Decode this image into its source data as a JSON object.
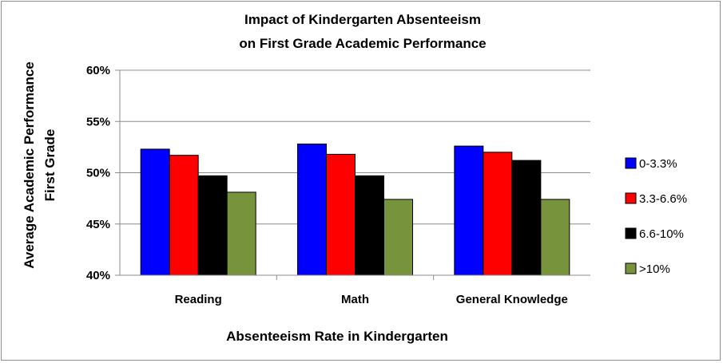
{
  "chart_data": {
    "type": "bar",
    "title_lines": [
      "Impact of Kindergarten Absenteeism",
      "on First Grade Academic Performance"
    ],
    "ylabel_lines": [
      "Average Academic Performance",
      "First Grade"
    ],
    "xlabel": "Absenteeism Rate in Kindergarten",
    "categories": [
      "Reading",
      "Math",
      "General Knowledge"
    ],
    "series": [
      {
        "name": "0-3.3%",
        "color": "#0000ff",
        "values": [
          52.3,
          52.8,
          52.6
        ]
      },
      {
        "name": "3.3-6.6%",
        "color": "#ff0000",
        "values": [
          51.7,
          51.8,
          52.0
        ]
      },
      {
        "name": "6.6-10%",
        "color": "#000000",
        "values": [
          49.7,
          49.7,
          51.2
        ]
      },
      {
        "name": ">10%",
        "color": "#77933c",
        "values": [
          48.1,
          47.4,
          47.4
        ]
      }
    ],
    "ylim": [
      40,
      60
    ],
    "yticks": [
      40,
      45,
      50,
      55,
      60
    ],
    "ytick_labels": [
      "40%",
      "45%",
      "50%",
      "55%",
      "60%"
    ],
    "grid": true,
    "legend_position": "right"
  }
}
